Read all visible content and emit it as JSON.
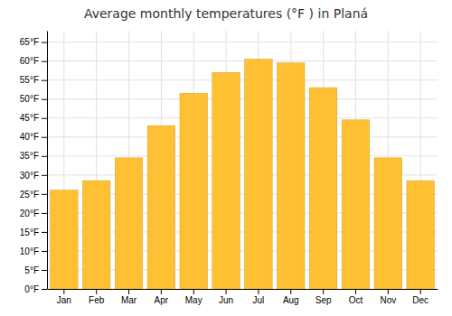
{
  "chart_data": {
    "type": "bar",
    "title": "Average monthly temperatures (°F ) in Planá",
    "categories": [
      "Jan",
      "Feb",
      "Mar",
      "Apr",
      "May",
      "Jun",
      "Jul",
      "Aug",
      "Sep",
      "Oct",
      "Nov",
      "Dec"
    ],
    "values": [
      26,
      28.5,
      34.5,
      43,
      51.5,
      57,
      60.5,
      59.5,
      53,
      44.5,
      34.5,
      28.5
    ],
    "color": "#FFC133",
    "ylim": [
      0,
      68
    ],
    "yticks": [
      {
        "value": 0,
        "label": "0°F"
      },
      {
        "value": 5,
        "label": "5°F"
      },
      {
        "value": 10,
        "label": "10°F"
      },
      {
        "value": 15,
        "label": "15°F"
      },
      {
        "value": 20,
        "label": "20°F"
      },
      {
        "value": 25,
        "label": "25°F"
      },
      {
        "value": 30,
        "label": "30°F"
      },
      {
        "value": 35,
        "label": "35°F"
      },
      {
        "value": 40,
        "label": "40°F"
      },
      {
        "value": 45,
        "label": "45°F"
      },
      {
        "value": 50,
        "label": "50°F"
      },
      {
        "value": 55,
        "label": "55°F"
      },
      {
        "value": 60,
        "label": "60°F"
      },
      {
        "value": 65,
        "label": "65°F"
      }
    ],
    "grid": true
  }
}
